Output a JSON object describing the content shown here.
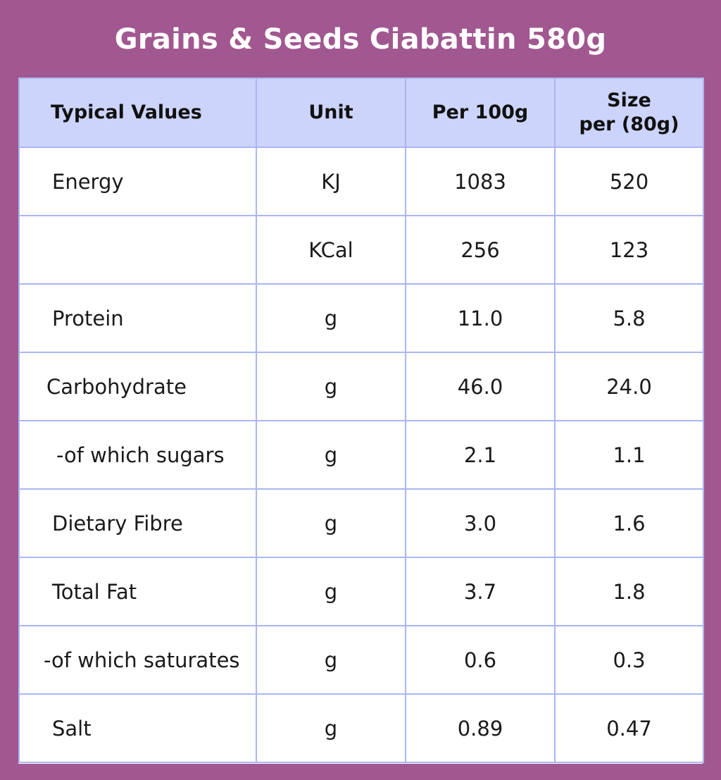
{
  "title": "Grains & Seeds Ciabattin 580g",
  "table": {
    "headers": {
      "typical_values": "Typical Values",
      "unit": "Unit",
      "per_100g": "Per 100g",
      "size_line1": "Size",
      "size_line2": "per (80g)"
    },
    "rows": [
      {
        "name": "Energy",
        "unit": "KJ",
        "per_100g": "1083",
        "per_80g": "520"
      },
      {
        "name": "",
        "unit": "KCal",
        "per_100g": "256",
        "per_80g": "123"
      },
      {
        "name": "Protein",
        "unit": "g",
        "per_100g": "11.0",
        "per_80g": "5.8"
      },
      {
        "name": "Carbohydrate",
        "unit": "g",
        "per_100g": "46.0",
        "per_80g": "24.0"
      },
      {
        "name": "-of which sugars",
        "unit": "g",
        "per_100g": "2.1",
        "per_80g": "1.1"
      },
      {
        "name": "Dietary Fibre",
        "unit": "g",
        "per_100g": "3.0",
        "per_80g": "1.6"
      },
      {
        "name": "Total Fat",
        "unit": "g",
        "per_100g": "3.7",
        "per_80g": "1.8"
      },
      {
        "name": "-of which saturates",
        "unit": "g",
        "per_100g": "0.6",
        "per_80g": "0.3"
      },
      {
        "name": "Salt",
        "unit": "g",
        "per_100g": "0.89",
        "per_80g": "0.47"
      }
    ]
  },
  "colors": {
    "background": "#a1578f",
    "header_fill": "#ccd4fb",
    "grid_lines": "#aab6f2",
    "cell_fill": "#ffffff"
  }
}
